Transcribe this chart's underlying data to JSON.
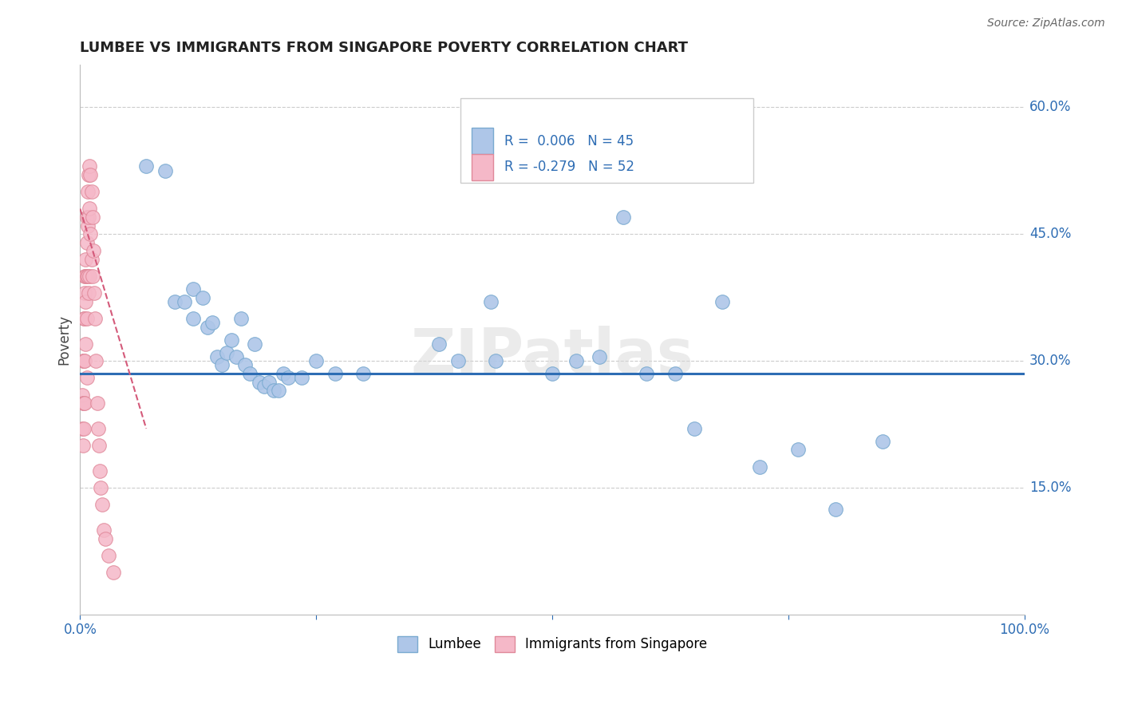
{
  "title": "LUMBEE VS IMMIGRANTS FROM SINGAPORE POVERTY CORRELATION CHART",
  "source": "Source: ZipAtlas.com",
  "ylabel": "Poverty",
  "xlim": [
    0.0,
    1.0
  ],
  "ylim": [
    0.0,
    0.65
  ],
  "yticks": [
    0.0,
    0.15,
    0.3,
    0.45,
    0.6
  ],
  "ytick_labels": [
    "",
    "15.0%",
    "30.0%",
    "45.0%",
    "60.0%"
  ],
  "xticks": [
    0.0,
    0.25,
    0.5,
    0.75,
    1.0
  ],
  "xtick_labels": [
    "0.0%",
    "",
    "",
    "",
    "100.0%"
  ],
  "lumbee_R": "0.006",
  "lumbee_N": "45",
  "singapore_R": "-0.279",
  "singapore_N": "52",
  "lumbee_color": "#aec6e8",
  "singapore_color": "#f5b8c8",
  "lumbee_line_color": "#2e6db4",
  "singapore_line_color": "#d45a7a",
  "lumbee_trend_y": 0.285,
  "watermark": "ZIPatlas",
  "lumbee_x": [
    0.07,
    0.09,
    0.1,
    0.11,
    0.12,
    0.12,
    0.13,
    0.135,
    0.14,
    0.145,
    0.15,
    0.155,
    0.16,
    0.165,
    0.17,
    0.175,
    0.18,
    0.185,
    0.19,
    0.195,
    0.2,
    0.205,
    0.21,
    0.215,
    0.22,
    0.235,
    0.25,
    0.27,
    0.3,
    0.38,
    0.4,
    0.435,
    0.44,
    0.5,
    0.525,
    0.55,
    0.575,
    0.6,
    0.63,
    0.65,
    0.68,
    0.72,
    0.76,
    0.8,
    0.85
  ],
  "lumbee_y": [
    0.53,
    0.525,
    0.37,
    0.37,
    0.385,
    0.35,
    0.375,
    0.34,
    0.345,
    0.305,
    0.295,
    0.31,
    0.325,
    0.305,
    0.35,
    0.295,
    0.285,
    0.32,
    0.275,
    0.27,
    0.275,
    0.265,
    0.265,
    0.285,
    0.28,
    0.28,
    0.3,
    0.285,
    0.285,
    0.32,
    0.3,
    0.37,
    0.3,
    0.285,
    0.3,
    0.305,
    0.47,
    0.285,
    0.285,
    0.22,
    0.37,
    0.175,
    0.195,
    0.125,
    0.205
  ],
  "singapore_x": [
    0.002,
    0.002,
    0.003,
    0.003,
    0.003,
    0.004,
    0.004,
    0.004,
    0.004,
    0.005,
    0.005,
    0.005,
    0.005,
    0.005,
    0.006,
    0.006,
    0.006,
    0.006,
    0.007,
    0.007,
    0.007,
    0.007,
    0.007,
    0.008,
    0.008,
    0.008,
    0.009,
    0.009,
    0.009,
    0.01,
    0.01,
    0.01,
    0.011,
    0.011,
    0.012,
    0.012,
    0.013,
    0.013,
    0.014,
    0.015,
    0.016,
    0.017,
    0.018,
    0.019,
    0.02,
    0.021,
    0.022,
    0.023,
    0.025,
    0.027,
    0.03,
    0.035
  ],
  "singapore_y": [
    0.26,
    0.22,
    0.3,
    0.25,
    0.2,
    0.35,
    0.3,
    0.25,
    0.22,
    0.4,
    0.38,
    0.35,
    0.3,
    0.25,
    0.42,
    0.4,
    0.37,
    0.32,
    0.47,
    0.44,
    0.4,
    0.35,
    0.28,
    0.5,
    0.46,
    0.4,
    0.52,
    0.47,
    0.38,
    0.53,
    0.48,
    0.4,
    0.52,
    0.45,
    0.5,
    0.42,
    0.47,
    0.4,
    0.43,
    0.38,
    0.35,
    0.3,
    0.25,
    0.22,
    0.2,
    0.17,
    0.15,
    0.13,
    0.1,
    0.09,
    0.07,
    0.05
  ],
  "singapore_trend_x": [
    0.0,
    0.07
  ],
  "singapore_trend_y": [
    0.48,
    0.22
  ]
}
